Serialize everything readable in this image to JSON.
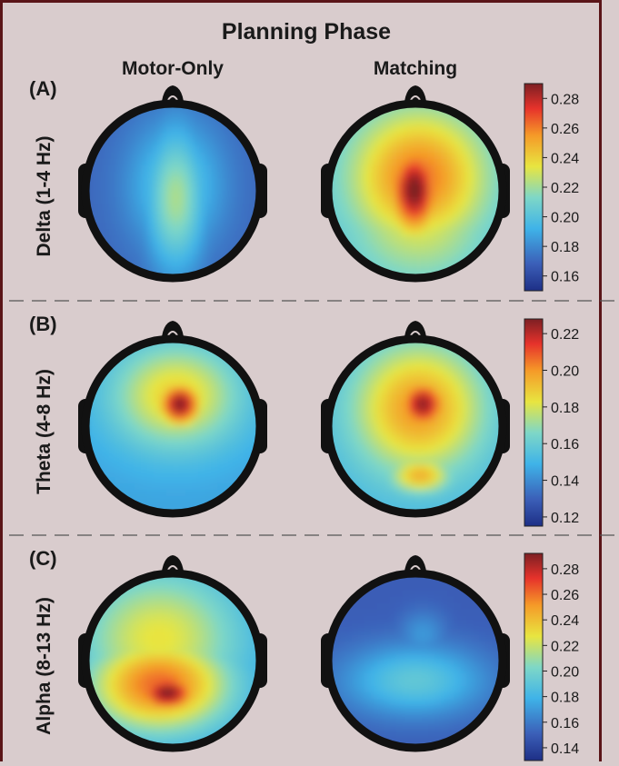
{
  "chart_data": {
    "type": "heatmap",
    "title": "Planning Phase",
    "columns": [
      "Motor-Only",
      "Matching"
    ],
    "panels": [
      {
        "label": "(A)",
        "band": "Delta (1-4 Hz)",
        "ticks": [
          "0.28",
          "0.26",
          "0.24",
          "0.22",
          "0.20",
          "0.18",
          "0.16"
        ],
        "range": [
          0.15,
          0.29
        ],
        "maps": [
          {
            "condition": "Motor-Only",
            "blobs": [
              {
                "x": 0.0,
                "y": 0.05,
                "sx": 0.25,
                "sy": 0.6,
                "v": 0.222
              },
              {
                "x": 0.0,
                "y": -0.1,
                "sx": 0.4,
                "sy": 0.55,
                "v": 0.203
              }
            ],
            "base": 0.17
          },
          {
            "condition": "Matching",
            "blobs": [
              {
                "x": -0.05,
                "y": -0.05,
                "sx": 0.22,
                "sy": 0.38,
                "v": 0.292
              },
              {
                "x": 0.0,
                "y": -0.2,
                "sx": 0.55,
                "sy": 0.55,
                "v": 0.262
              },
              {
                "x": 0.0,
                "y": 0.2,
                "sx": 0.55,
                "sy": 0.55,
                "v": 0.235
              }
            ],
            "base": 0.2
          }
        ]
      },
      {
        "label": "(B)",
        "band": "Theta (4-8 Hz)",
        "ticks": [
          "0.22",
          "0.20",
          "0.18",
          "0.16",
          "0.14",
          "0.12"
        ],
        "range": [
          0.115,
          0.228
        ],
        "maps": [
          {
            "condition": "Motor-Only",
            "blobs": [
              {
                "x": 0.05,
                "y": -0.3,
                "sx": 0.2,
                "sy": 0.2,
                "v": 0.228
              },
              {
                "x": 0.0,
                "y": -0.4,
                "sx": 0.55,
                "sy": 0.45,
                "v": 0.188
              }
            ],
            "base": 0.145
          },
          {
            "condition": "Matching",
            "blobs": [
              {
                "x": 0.05,
                "y": -0.3,
                "sx": 0.22,
                "sy": 0.22,
                "v": 0.226
              },
              {
                "x": 0.0,
                "y": -0.25,
                "sx": 0.55,
                "sy": 0.55,
                "v": 0.2
              },
              {
                "x": 0.02,
                "y": 0.55,
                "sx": 0.25,
                "sy": 0.15,
                "v": 0.195
              }
            ],
            "base": 0.15
          }
        ]
      },
      {
        "label": "(C)",
        "band": "Alpha (8-13 Hz)",
        "ticks": [
          "0.28",
          "0.26",
          "0.24",
          "0.22",
          "0.20",
          "0.18",
          "0.16",
          "0.14"
        ],
        "range": [
          0.13,
          0.292
        ],
        "maps": [
          {
            "condition": "Motor-Only",
            "blobs": [
              {
                "x": -0.1,
                "y": 0.35,
                "sx": 0.28,
                "sy": 0.18,
                "v": 0.292
              },
              {
                "x": -0.2,
                "y": 0.25,
                "sx": 0.6,
                "sy": 0.4,
                "v": 0.262
              },
              {
                "x": -0.2,
                "y": -0.3,
                "sx": 0.7,
                "sy": 0.6,
                "v": 0.228
              }
            ],
            "base": 0.17
          },
          {
            "condition": "Matching",
            "blobs": [
              {
                "x": -0.05,
                "y": 0.2,
                "sx": 0.6,
                "sy": 0.3,
                "v": 0.192
              },
              {
                "x": 0.05,
                "y": -0.35,
                "sx": 0.2,
                "sy": 0.2,
                "v": 0.17
              }
            ],
            "base": 0.15
          }
        ]
      }
    ]
  }
}
